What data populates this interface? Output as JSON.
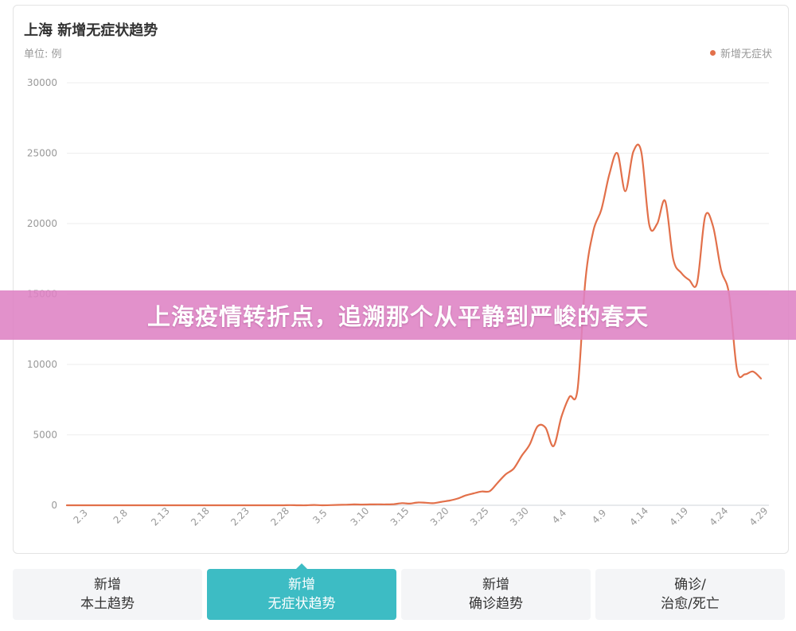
{
  "chart": {
    "title": "上海 新增无症状趋势",
    "unit": "单位: 例",
    "legend_label": "新增无症状",
    "line_color": "#e2704a"
  },
  "banner": {
    "text": "上海疫情转折点，追溯那个从平静到严峻的春天"
  },
  "tabs": [
    {
      "line1": "新增",
      "line2": "本土趋势",
      "active": false
    },
    {
      "line1": "新增",
      "line2": "无症状趋势",
      "active": true
    },
    {
      "line1": "新增",
      "line2": "确诊趋势",
      "active": false
    },
    {
      "line1": "确诊/",
      "line2": "治愈/死亡",
      "active": false
    }
  ],
  "chart_data": {
    "type": "line",
    "title": "上海 新增无症状趋势",
    "ylabel": "单位: 例",
    "ylim": [
      0,
      30000
    ],
    "yticks": [
      "0",
      "5000",
      "10000",
      "15000",
      "20000",
      "25000",
      "30000"
    ],
    "xticks": [
      "2.3",
      "2.8",
      "2.13",
      "2.18",
      "2.23",
      "2.28",
      "3.5",
      "3.10",
      "3.15",
      "3.20",
      "3.25",
      "3.30",
      "4.4",
      "4.9",
      "4.14",
      "4.19",
      "4.24",
      "4.29"
    ],
    "grid": true,
    "legend_position": "top-right",
    "series": [
      {
        "name": "新增无症状",
        "x_start_date": "2022-02-01",
        "x_end_date": "2022-04-30",
        "values": [
          0,
          0,
          0,
          0,
          0,
          0,
          0,
          0,
          0,
          0,
          0,
          0,
          0,
          0,
          0,
          0,
          0,
          0,
          0,
          0,
          0,
          0,
          0,
          0,
          0,
          0,
          0,
          0,
          10,
          0,
          0,
          20,
          0,
          10,
          30,
          40,
          60,
          50,
          60,
          70,
          60,
          80,
          150,
          120,
          200,
          180,
          150,
          250,
          340,
          480,
          700,
          850,
          980,
          1000,
          1600,
          2200,
          2600,
          3500,
          4300,
          5600,
          5500,
          4200,
          6300,
          7700,
          8200,
          16000,
          19500,
          21000,
          23500,
          25000,
          22300,
          25100,
          25100,
          19900,
          20000,
          21600,
          17500,
          16500,
          16000,
          15800,
          20500,
          19800,
          16700,
          15000,
          9600,
          9300,
          9500,
          9000
        ]
      }
    ]
  }
}
